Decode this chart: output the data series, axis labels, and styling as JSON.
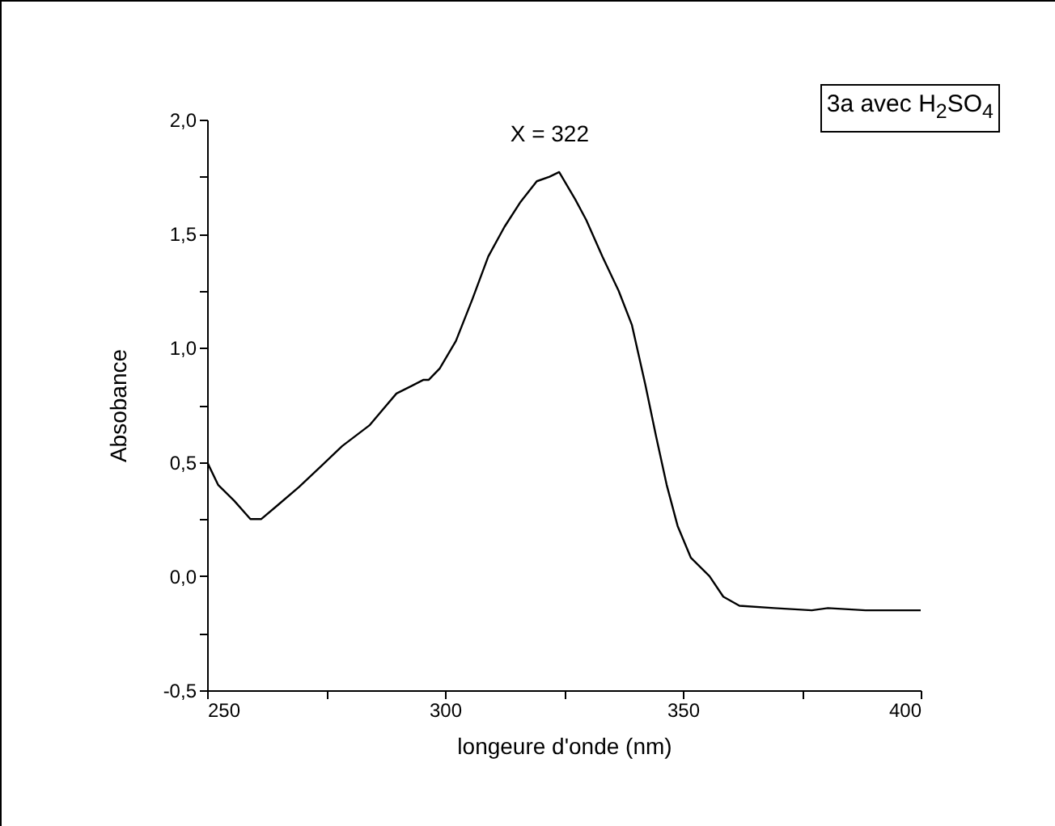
{
  "chart_data": {
    "type": "line",
    "xlabel": "longeure d'onde (nm)",
    "ylabel": "Absobance",
    "annotations": [
      "3a avec H$_{2}$SO$_{4}$",
      {
        "text": "X = 322",
        "x": 322,
        "y": 1.77
      }
    ],
    "x": [
      250,
      252.3,
      255.7,
      259.1,
      261.4,
      264.8,
      269.3,
      273.9,
      278.4,
      284.1,
      289.8,
      295.5,
      296.6,
      298.9,
      302.3,
      305.7,
      309.1,
      312.5,
      315.9,
      319.3,
      322,
      324,
      327.4,
      329.7,
      333.1,
      336.5,
      339.3,
      342.1,
      344.4,
      346.6,
      348.9,
      351.7,
      355.6,
      358.5,
      361.9,
      369.2,
      377.1,
      380.5,
      388.4,
      395.1,
      400
    ],
    "series": [
      {
        "color": "#000000",
        "values": [
          0.5,
          0.4,
          0.33,
          0.25,
          0.25,
          0.31,
          0.39,
          0.48,
          0.57,
          0.66,
          0.8,
          0.86,
          0.86,
          0.91,
          1.03,
          1.21,
          1.4,
          1.53,
          1.64,
          1.73,
          1.75,
          1.77,
          1.65,
          1.56,
          1.4,
          1.25,
          1.1,
          0.84,
          0.61,
          0.4,
          0.22,
          0.08,
          0.0,
          -0.09,
          -0.13,
          -0.14,
          -0.15,
          -0.14,
          -0.15,
          -0.15,
          -0.15
        ]
      }
    ],
    "xlim": [
      250,
      400
    ],
    "xticks": [
      250,
      {
        "value": 275,
        "label": null
      },
      300,
      {
        "value": 325,
        "label": null
      },
      350,
      {
        "value": 375,
        "label": null
      },
      400
    ],
    "ylim": [
      -0.5,
      2.0
    ],
    "yticks": [
      {
        "value": -0.5,
        "label": "-0,5"
      },
      {
        "value": -0.25,
        "label": null
      },
      {
        "value": 0,
        "label": "0,0"
      },
      {
        "value": 0.25,
        "label": null
      },
      {
        "value": 0.5,
        "label": "0,5"
      },
      {
        "value": 0.75,
        "label": null
      },
      {
        "value": 1,
        "label": "1,0"
      },
      {
        "value": 1.25,
        "label": null
      },
      {
        "value": 1.5,
        "label": "1,5"
      },
      {
        "value": 1.75,
        "label": null
      },
      {
        "value": 2,
        "label": "2,0"
      }
    ],
    "grid": false,
    "legend": false
  }
}
